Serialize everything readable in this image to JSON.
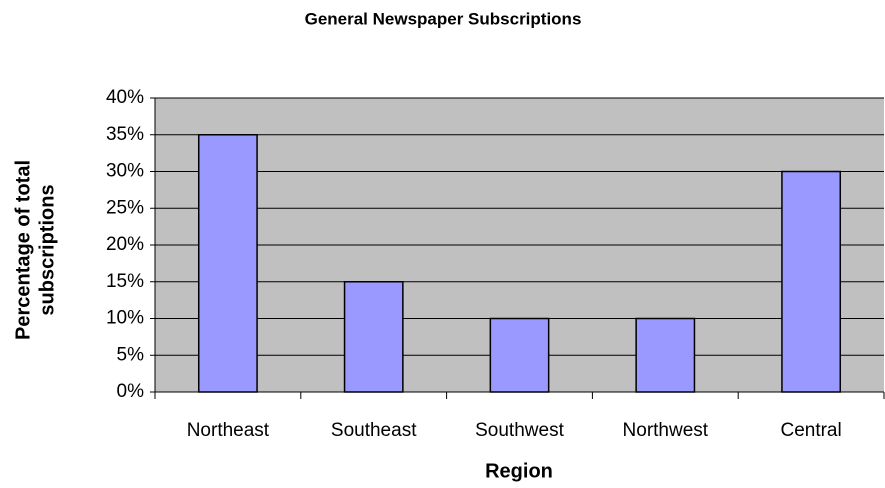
{
  "chart_data": {
    "type": "bar",
    "title": "General Newspaper Subscriptions",
    "categories": [
      "Northeast",
      "Southeast",
      "Southwest",
      "Northwest",
      "Central"
    ],
    "values": [
      35,
      15,
      10,
      10,
      30
    ],
    "color": "#9999ff",
    "xlabel": "Region",
    "ylabel": [
      "Percentage of total",
      "subscriptions"
    ],
    "ylim": [
      0,
      40
    ],
    "yticks": [
      {
        "value": 0,
        "label": "0%"
      },
      {
        "value": 5,
        "label": "5%"
      },
      {
        "value": 10,
        "label": "10%"
      },
      {
        "value": 15,
        "label": "15%"
      },
      {
        "value": 20,
        "label": "20%"
      },
      {
        "value": 25,
        "label": "25%"
      },
      {
        "value": 30,
        "label": "30%"
      },
      {
        "value": 35,
        "label": "35%"
      },
      {
        "value": 40,
        "label": "40%"
      }
    ],
    "grid": true
  }
}
